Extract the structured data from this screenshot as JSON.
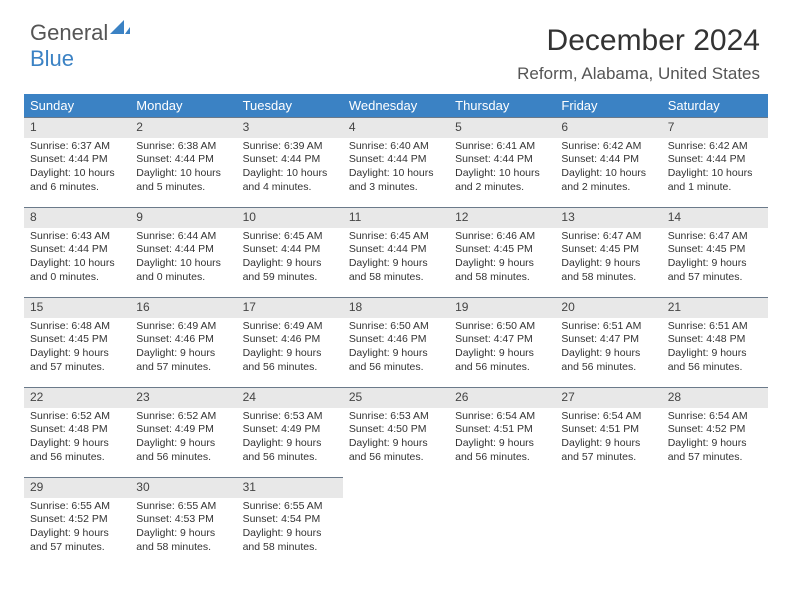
{
  "logo": {
    "part1": "General",
    "part2": "Blue"
  },
  "title": "December 2024",
  "location": "Reform, Alabama, United States",
  "colors": {
    "header_bg": "#3b82c4",
    "header_text": "#ffffff",
    "daynum_bg": "#e8e8e8",
    "border": "#6b7a8a",
    "body_text": "#333333"
  },
  "typography": {
    "title_fontsize_pt": 23,
    "subtitle_fontsize_pt": 13,
    "header_fontsize_pt": 10,
    "cell_fontsize_pt": 8
  },
  "weekdays": [
    "Sunday",
    "Monday",
    "Tuesday",
    "Wednesday",
    "Thursday",
    "Friday",
    "Saturday"
  ],
  "days": [
    {
      "n": 1,
      "sunrise": "6:37 AM",
      "sunset": "4:44 PM",
      "daylight": "10 hours and 6 minutes."
    },
    {
      "n": 2,
      "sunrise": "6:38 AM",
      "sunset": "4:44 PM",
      "daylight": "10 hours and 5 minutes."
    },
    {
      "n": 3,
      "sunrise": "6:39 AM",
      "sunset": "4:44 PM",
      "daylight": "10 hours and 4 minutes."
    },
    {
      "n": 4,
      "sunrise": "6:40 AM",
      "sunset": "4:44 PM",
      "daylight": "10 hours and 3 minutes."
    },
    {
      "n": 5,
      "sunrise": "6:41 AM",
      "sunset": "4:44 PM",
      "daylight": "10 hours and 2 minutes."
    },
    {
      "n": 6,
      "sunrise": "6:42 AM",
      "sunset": "4:44 PM",
      "daylight": "10 hours and 2 minutes."
    },
    {
      "n": 7,
      "sunrise": "6:42 AM",
      "sunset": "4:44 PM",
      "daylight": "10 hours and 1 minute."
    },
    {
      "n": 8,
      "sunrise": "6:43 AM",
      "sunset": "4:44 PM",
      "daylight": "10 hours and 0 minutes."
    },
    {
      "n": 9,
      "sunrise": "6:44 AM",
      "sunset": "4:44 PM",
      "daylight": "10 hours and 0 minutes."
    },
    {
      "n": 10,
      "sunrise": "6:45 AM",
      "sunset": "4:44 PM",
      "daylight": "9 hours and 59 minutes."
    },
    {
      "n": 11,
      "sunrise": "6:45 AM",
      "sunset": "4:44 PM",
      "daylight": "9 hours and 58 minutes."
    },
    {
      "n": 12,
      "sunrise": "6:46 AM",
      "sunset": "4:45 PM",
      "daylight": "9 hours and 58 minutes."
    },
    {
      "n": 13,
      "sunrise": "6:47 AM",
      "sunset": "4:45 PM",
      "daylight": "9 hours and 58 minutes."
    },
    {
      "n": 14,
      "sunrise": "6:47 AM",
      "sunset": "4:45 PM",
      "daylight": "9 hours and 57 minutes."
    },
    {
      "n": 15,
      "sunrise": "6:48 AM",
      "sunset": "4:45 PM",
      "daylight": "9 hours and 57 minutes."
    },
    {
      "n": 16,
      "sunrise": "6:49 AM",
      "sunset": "4:46 PM",
      "daylight": "9 hours and 57 minutes."
    },
    {
      "n": 17,
      "sunrise": "6:49 AM",
      "sunset": "4:46 PM",
      "daylight": "9 hours and 56 minutes."
    },
    {
      "n": 18,
      "sunrise": "6:50 AM",
      "sunset": "4:46 PM",
      "daylight": "9 hours and 56 minutes."
    },
    {
      "n": 19,
      "sunrise": "6:50 AM",
      "sunset": "4:47 PM",
      "daylight": "9 hours and 56 minutes."
    },
    {
      "n": 20,
      "sunrise": "6:51 AM",
      "sunset": "4:47 PM",
      "daylight": "9 hours and 56 minutes."
    },
    {
      "n": 21,
      "sunrise": "6:51 AM",
      "sunset": "4:48 PM",
      "daylight": "9 hours and 56 minutes."
    },
    {
      "n": 22,
      "sunrise": "6:52 AM",
      "sunset": "4:48 PM",
      "daylight": "9 hours and 56 minutes."
    },
    {
      "n": 23,
      "sunrise": "6:52 AM",
      "sunset": "4:49 PM",
      "daylight": "9 hours and 56 minutes."
    },
    {
      "n": 24,
      "sunrise": "6:53 AM",
      "sunset": "4:49 PM",
      "daylight": "9 hours and 56 minutes."
    },
    {
      "n": 25,
      "sunrise": "6:53 AM",
      "sunset": "4:50 PM",
      "daylight": "9 hours and 56 minutes."
    },
    {
      "n": 26,
      "sunrise": "6:54 AM",
      "sunset": "4:51 PM",
      "daylight": "9 hours and 56 minutes."
    },
    {
      "n": 27,
      "sunrise": "6:54 AM",
      "sunset": "4:51 PM",
      "daylight": "9 hours and 57 minutes."
    },
    {
      "n": 28,
      "sunrise": "6:54 AM",
      "sunset": "4:52 PM",
      "daylight": "9 hours and 57 minutes."
    },
    {
      "n": 29,
      "sunrise": "6:55 AM",
      "sunset": "4:52 PM",
      "daylight": "9 hours and 57 minutes."
    },
    {
      "n": 30,
      "sunrise": "6:55 AM",
      "sunset": "4:53 PM",
      "daylight": "9 hours and 58 minutes."
    },
    {
      "n": 31,
      "sunrise": "6:55 AM",
      "sunset": "4:54 PM",
      "daylight": "9 hours and 58 minutes."
    }
  ],
  "labels": {
    "sunrise": "Sunrise:",
    "sunset": "Sunset:",
    "daylight": "Daylight:"
  },
  "calendar": {
    "first_weekday_index": 0,
    "rows": 5,
    "cols": 7
  }
}
